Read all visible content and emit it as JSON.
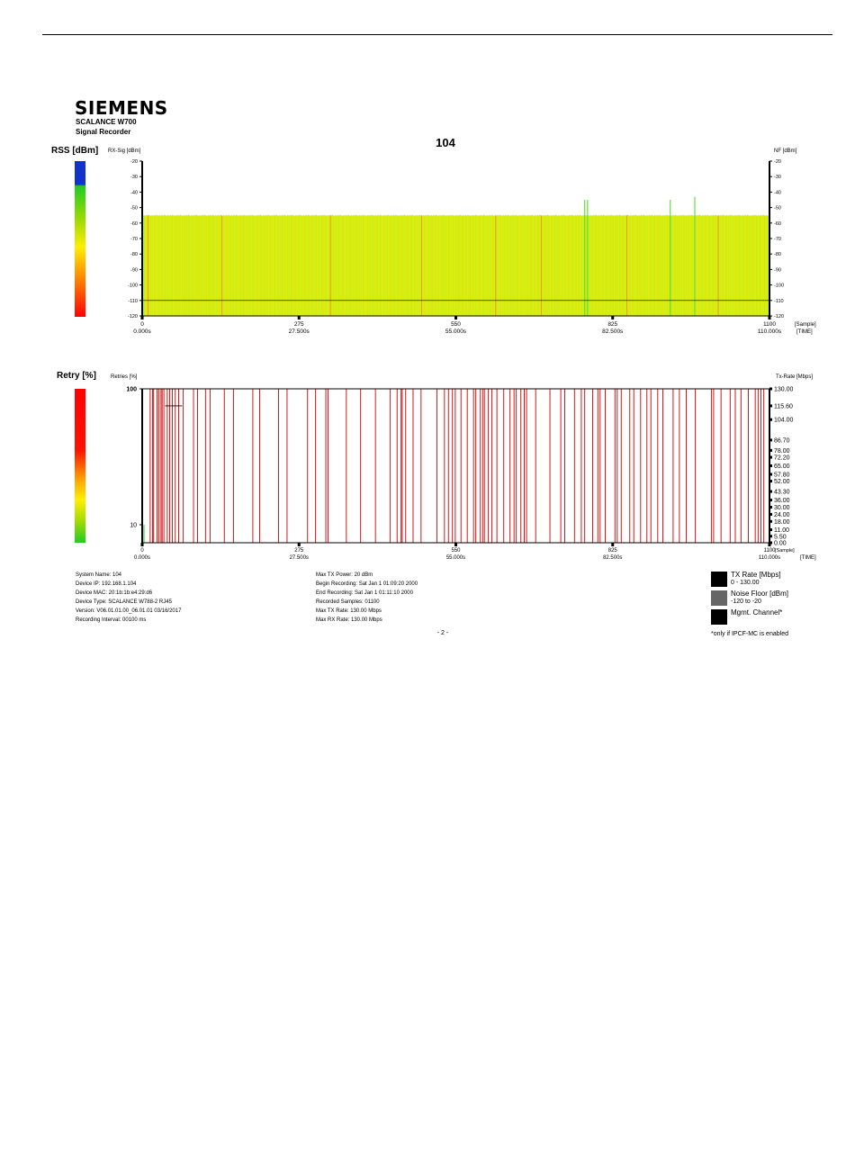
{
  "header": {
    "logo": "SIEMENS",
    "product": "SCALANCE W700",
    "app": "Signal Recorder",
    "title": "104"
  },
  "rss_chart": {
    "side_label": "RSS [dBm]",
    "left_axis_label": "RX-Sig [dBm]",
    "right_axis_label": "NF [dBm]",
    "colors": {
      "bar_main": "#ccee11",
      "bar_alt": "#e8e800",
      "spike": "#ff6633",
      "green": "#66dd44",
      "noise_line": "#000000"
    },
    "scale_colors": [
      "#1133cc",
      "#22cc22",
      "#aadd00",
      "#ffee00",
      "#ff8800",
      "#ff0000"
    ]
  },
  "retry_chart": {
    "side_label": "Retry [%]",
    "left_axis_label": "Retries [%]",
    "right_axis_label": "Tx-Rate [Mbps]",
    "colors": {
      "retry": "#cc0000",
      "tx_line": "#000000"
    },
    "scale_colors": [
      "#ff0000",
      "#ff2200",
      "#ffaa00",
      "#ffee00",
      "#aadd00",
      "#22cc22"
    ]
  },
  "chart_data": [
    {
      "type": "bar",
      "title": "104",
      "ylabel": "RX-Sig [dBm]",
      "y2label": "NF [dBm]",
      "xlabel": "[Sample]",
      "x2label": "[TIME]",
      "ylim": [
        -120,
        -20
      ],
      "xlim": [
        0,
        1100
      ],
      "y_ticks": [
        "-20",
        "-30",
        "-40",
        "-50",
        "-60",
        "-70",
        "-80",
        "-90",
        "-100",
        "-110",
        "-120"
      ],
      "x_ticks": [
        "0",
        "275",
        "550",
        "825",
        "1100"
      ],
      "time_ticks": [
        "0.000s",
        "27.500s",
        "55.000s",
        "82.500s",
        "110.000s"
      ],
      "series": [
        {
          "name": "RX-Sig",
          "baseline_value": -55,
          "peaks": [
            {
              "x": 775,
              "value": -45
            },
            {
              "x": 780,
              "value": -45
            },
            {
              "x": 925,
              "value": -45
            },
            {
              "x": 968,
              "value": -43
            }
          ]
        },
        {
          "name": "NF",
          "value": -110
        }
      ],
      "grid": false
    },
    {
      "type": "bar",
      "ylabel": "Retries [%]",
      "y2label": "Tx-Rate [Mbps]",
      "xlabel": "[Sample]",
      "x2label": "[TIME]",
      "xlim": [
        0,
        1100
      ],
      "y_ticks": [
        "100",
        "10"
      ],
      "y2_ticks": [
        "130.00",
        "115.60",
        "104.00",
        "86.70",
        "78.00",
        "72.20",
        "65.00",
        "57.80",
        "52.00",
        "43.30",
        "36.00",
        "30.00",
        "24.00",
        "18.00",
        "11.00",
        "5.50",
        "0.00"
      ],
      "x_ticks": [
        "0",
        "275",
        "550",
        "825",
        "1100"
      ],
      "time_ticks": [
        "0.000s",
        "27.500s",
        "55.000s",
        "82.500s",
        "110.000s"
      ],
      "series": [
        {
          "name": "Retries",
          "value": 100,
          "x": [
            14,
            18,
            20,
            26,
            29,
            33,
            35,
            38,
            44,
            48,
            53,
            58,
            64,
            72,
            90,
            97,
            111,
            119,
            144,
            160,
            194,
            206,
            239,
            254,
            290,
            304,
            322,
            326,
            358,
            383,
            409,
            435,
            447,
            454,
            456,
            462,
            475,
            489,
            517,
            530,
            537,
            544,
            549,
            559,
            570,
            581,
            585,
            593,
            597,
            600,
            607,
            613,
            622,
            634,
            645,
            652,
            656,
            664,
            670,
            674,
            690,
            715,
            734,
            741,
            758,
            770,
            776,
            790,
            799,
            803,
            812,
            829,
            833,
            840,
            855,
            862,
            874,
            885,
            892,
            904,
            913,
            931,
            942,
            954,
            970,
            998,
            1002,
            1015,
            1031,
            1040,
            1050,
            1063,
            1075,
            1080,
            1085,
            1090
          ]
        },
        {
          "name": "Tx-Rate",
          "segments": [
            {
              "x": [
                40,
                70
              ],
              "value": 115.6
            },
            {
              "x": [
                0,
                1100
              ],
              "value": 130.0
            }
          ]
        }
      ],
      "grid": false
    }
  ],
  "info_left": [
    "System Name: 104",
    "Device IP: 192.168.1.104",
    "Device MAC: 20:1b:1b:e4:29:d6",
    "Device Type: SCALANCE W788-2 RJ45",
    "Version: V06.01.01.00_06.01.01 03/16/2017",
    "Recording Interval: 00100 ms"
  ],
  "info_mid": [
    "Max TX Power: 20 dBm",
    "Begin Recording:   Sat Jan  1 01:09:20 2000",
    "End Recording:   Sat Jan  1 01:11:10 2000",
    "Recorded Samples:   01100",
    "Max TX Rate:   130.00 Mbps",
    "Max RX Rate:   130.00 Mbps"
  ],
  "legend": [
    {
      "title": "TX Rate [Mbps]",
      "sub": "0 - 130.00",
      "color": "#000000"
    },
    {
      "title": "Noise Floor [dBm]",
      "sub": "-120 to -20",
      "color": "#666666"
    },
    {
      "title": "Mgmt. Channel*",
      "sub": "",
      "color": "#000000"
    }
  ],
  "footnote": "*only if IPCF-MC is enabled",
  "page_number": "- 2 -"
}
